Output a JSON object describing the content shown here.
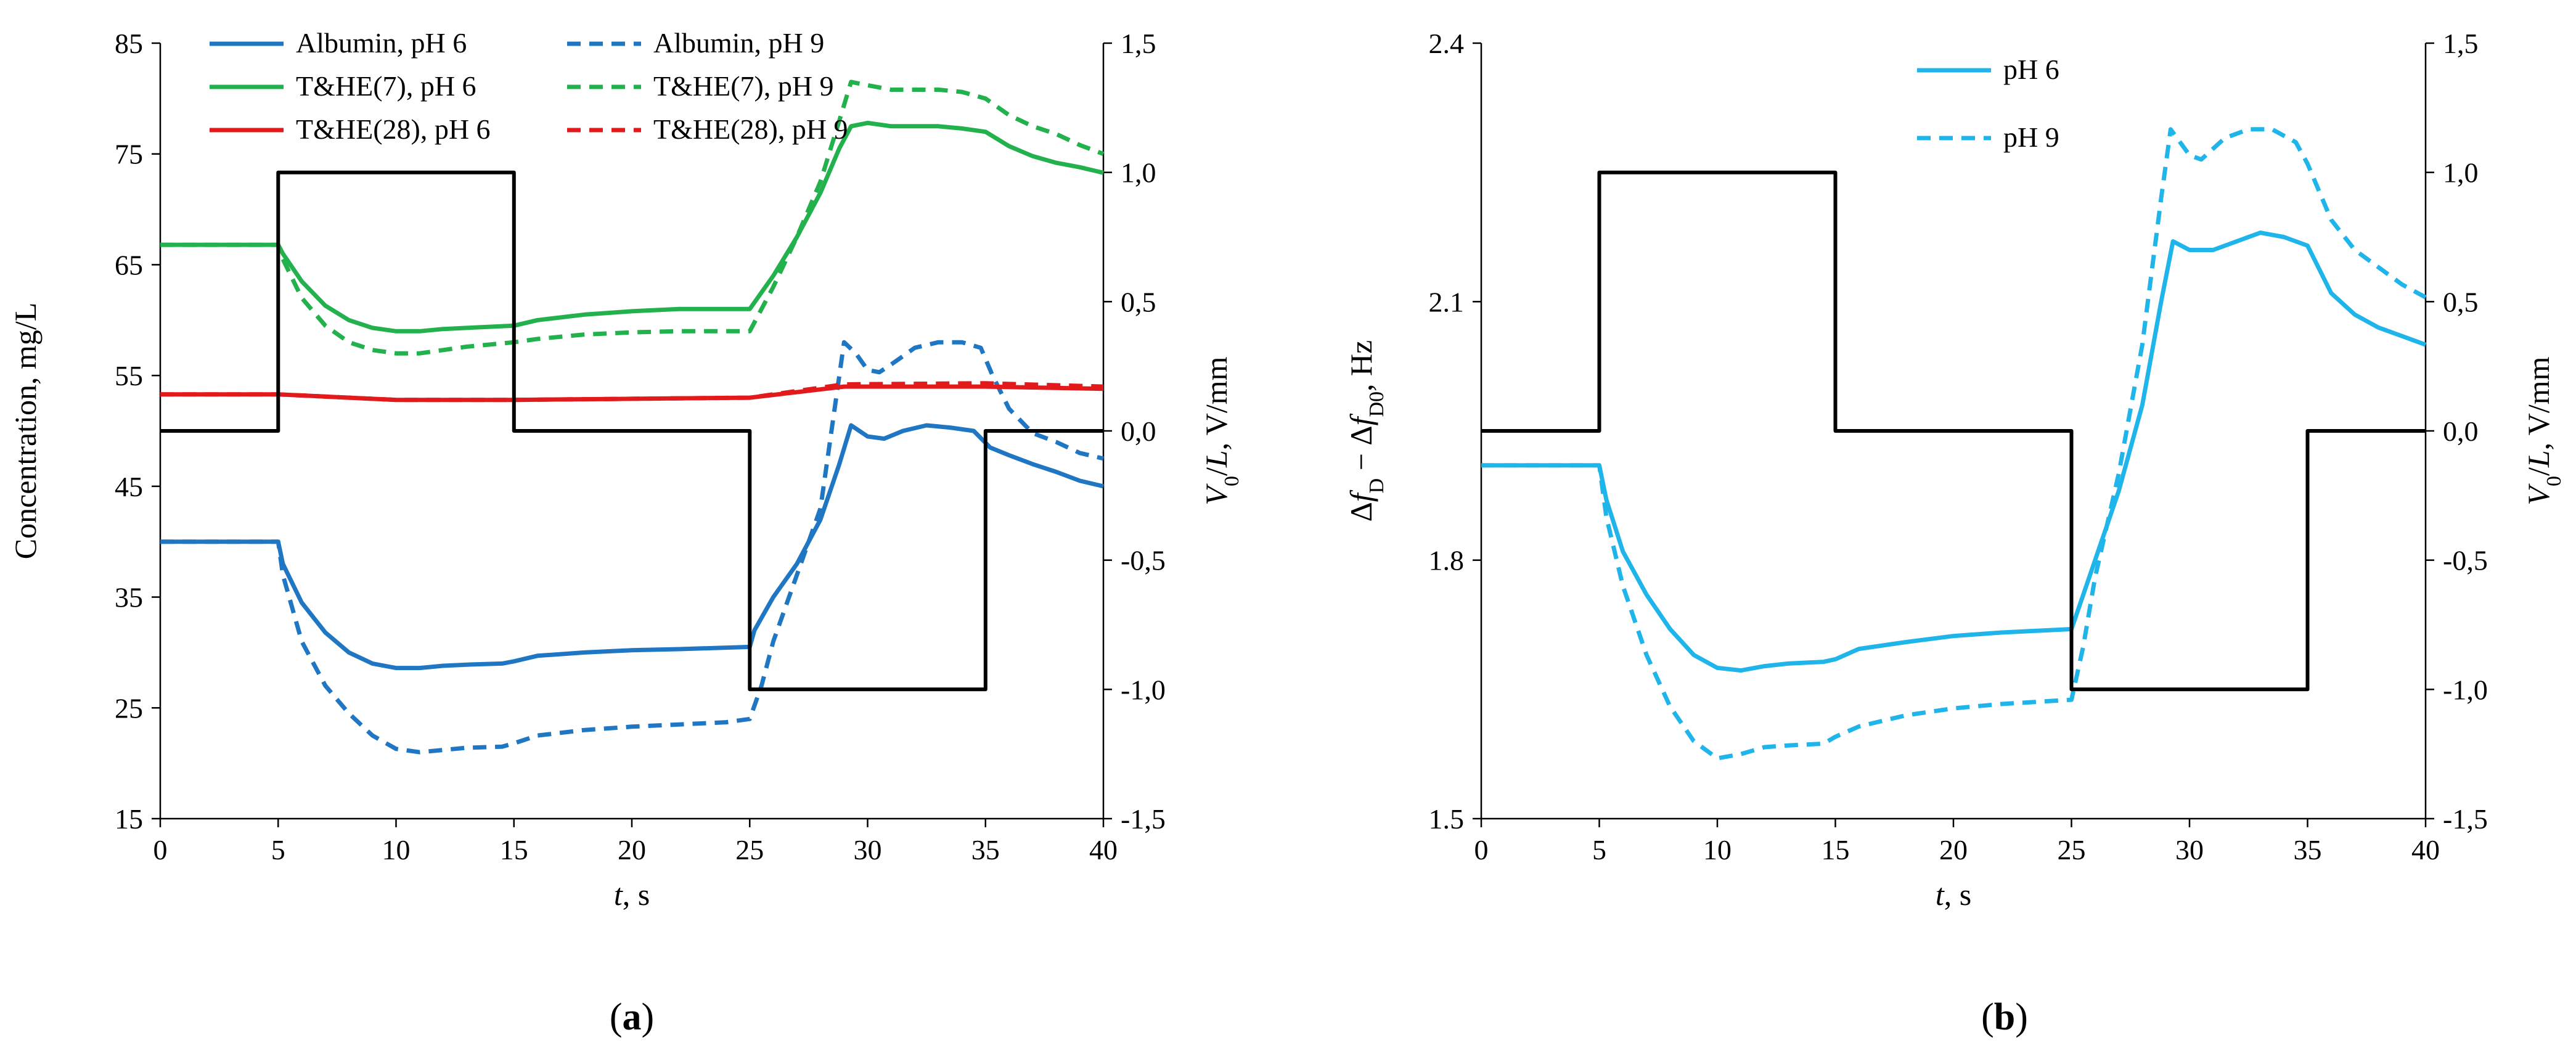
{
  "chart_data": [
    {
      "panel_label": "(a)",
      "type": "line",
      "xlabel": "t, s",
      "ylabel_left": "Concentration,  mg/L",
      "ylabel_right": "V0/L, V/mm",
      "xlim": [
        0,
        40
      ],
      "xticks": [
        0,
        5,
        10,
        15,
        20,
        25,
        30,
        35,
        40
      ],
      "ylim_left": [
        15,
        85
      ],
      "yticks_left": [
        15,
        25,
        35,
        45,
        55,
        65,
        75,
        85
      ],
      "ylim_right": [
        -1.5,
        1.5
      ],
      "yticks_right": [
        "-1,5",
        "-1,0",
        "-0,5",
        "0,0",
        "0,5",
        "1,0",
        "1,5"
      ],
      "legend_position": "top-left",
      "series": [
        {
          "name": "Albumin, pH 6",
          "axis": "left",
          "color": "#1f77c4",
          "dash": "solid",
          "points": [
            [
              0,
              40
            ],
            [
              5,
              40
            ],
            [
              5.2,
              38
            ],
            [
              6,
              34.5
            ],
            [
              7,
              31.8
            ],
            [
              8,
              30
            ],
            [
              9,
              29
            ],
            [
              10,
              28.6
            ],
            [
              11,
              28.6
            ],
            [
              12,
              28.8
            ],
            [
              13,
              28.9
            ],
            [
              14.5,
              29
            ],
            [
              15,
              29.2
            ],
            [
              16,
              29.7
            ],
            [
              18,
              30
            ],
            [
              20,
              30.2
            ],
            [
              22,
              30.3
            ],
            [
              25,
              30.5
            ],
            [
              25.2,
              32
            ],
            [
              26,
              35
            ],
            [
              27,
              38
            ],
            [
              28,
              42
            ],
            [
              28.8,
              47
            ],
            [
              29.3,
              50.5
            ],
            [
              30,
              49.5
            ],
            [
              30.7,
              49.3
            ],
            [
              31.5,
              50
            ],
            [
              32.5,
              50.5
            ],
            [
              33.5,
              50.3
            ],
            [
              34.5,
              50
            ],
            [
              35.2,
              48.5
            ],
            [
              36,
              47.8
            ],
            [
              37,
              47
            ],
            [
              38,
              46.3
            ],
            [
              39,
              45.5
            ],
            [
              40,
              45
            ]
          ]
        },
        {
          "name": "Albumin, pH 9",
          "axis": "left",
          "color": "#1f77c4",
          "dash": "dashed",
          "points": [
            [
              0,
              40
            ],
            [
              5,
              40
            ],
            [
              5.2,
              37
            ],
            [
              6,
              31
            ],
            [
              7,
              27
            ],
            [
              8,
              24.5
            ],
            [
              9,
              22.5
            ],
            [
              10,
              21.3
            ],
            [
              11,
              21
            ],
            [
              12,
              21.2
            ],
            [
              13,
              21.4
            ],
            [
              14.5,
              21.5
            ],
            [
              15,
              21.8
            ],
            [
              16,
              22.5
            ],
            [
              18,
              23
            ],
            [
              20,
              23.3
            ],
            [
              22,
              23.5
            ],
            [
              24,
              23.7
            ],
            [
              25,
              24
            ],
            [
              25.5,
              27
            ],
            [
              26,
              31
            ],
            [
              27,
              37
            ],
            [
              28,
              43
            ],
            [
              28.6,
              52
            ],
            [
              29,
              58
            ],
            [
              29.5,
              57
            ],
            [
              30,
              55.5
            ],
            [
              30.5,
              55.3
            ],
            [
              31,
              56
            ],
            [
              32,
              57.5
            ],
            [
              33,
              58
            ],
            [
              34,
              58
            ],
            [
              34.8,
              57.5
            ],
            [
              35.3,
              55
            ],
            [
              36,
              52
            ],
            [
              37,
              49.8
            ],
            [
              38,
              49
            ],
            [
              39,
              48
            ],
            [
              40,
              47.5
            ]
          ]
        },
        {
          "name": "T&HE(7), pH 6",
          "axis": "left",
          "color": "#22b14c",
          "dash": "solid",
          "points": [
            [
              0,
              66.8
            ],
            [
              5,
              66.8
            ],
            [
              5.2,
              66
            ],
            [
              6,
              63.5
            ],
            [
              7,
              61.3
            ],
            [
              8,
              60
            ],
            [
              9,
              59.3
            ],
            [
              10,
              59
            ],
            [
              11,
              59
            ],
            [
              12,
              59.2
            ],
            [
              13,
              59.3
            ],
            [
              15,
              59.5
            ],
            [
              16,
              60
            ],
            [
              18,
              60.5
            ],
            [
              20,
              60.8
            ],
            [
              22,
              61
            ],
            [
              25,
              61
            ],
            [
              26,
              64
            ],
            [
              27,
              67.5
            ],
            [
              28,
              71.5
            ],
            [
              28.8,
              75.5
            ],
            [
              29.3,
              77.5
            ],
            [
              30,
              77.8
            ],
            [
              31,
              77.5
            ],
            [
              32,
              77.5
            ],
            [
              33,
              77.5
            ],
            [
              34,
              77.3
            ],
            [
              35,
              77
            ],
            [
              36,
              75.7
            ],
            [
              37,
              74.8
            ],
            [
              38,
              74.2
            ],
            [
              39,
              73.8
            ],
            [
              40,
              73.3
            ]
          ]
        },
        {
          "name": "T&HE(7), pH 9",
          "axis": "left",
          "color": "#22b14c",
          "dash": "dashed",
          "points": [
            [
              0,
              66.8
            ],
            [
              5,
              66.8
            ],
            [
              5.2,
              65.5
            ],
            [
              6,
              62
            ],
            [
              7,
              59.5
            ],
            [
              8,
              58
            ],
            [
              9,
              57.3
            ],
            [
              10,
              57
            ],
            [
              11,
              57
            ],
            [
              12,
              57.3
            ],
            [
              13,
              57.6
            ],
            [
              15,
              58
            ],
            [
              16,
              58.3
            ],
            [
              18,
              58.7
            ],
            [
              20,
              58.9
            ],
            [
              22,
              59
            ],
            [
              25,
              59
            ],
            [
              26,
              63
            ],
            [
              27,
              67.5
            ],
            [
              28,
              72.5
            ],
            [
              28.8,
              78
            ],
            [
              29.3,
              81.5
            ],
            [
              30,
              81.2
            ],
            [
              31,
              80.8
            ],
            [
              32,
              80.8
            ],
            [
              33,
              80.8
            ],
            [
              34,
              80.6
            ],
            [
              35,
              80
            ],
            [
              36,
              78.5
            ],
            [
              37,
              77.5
            ],
            [
              38,
              76.8
            ],
            [
              39,
              75.8
            ],
            [
              40,
              75
            ]
          ]
        },
        {
          "name": "T&HE(28), pH 6",
          "axis": "left",
          "color": "#e31a1c",
          "dash": "solid",
          "points": [
            [
              0,
              53.3
            ],
            [
              5,
              53.3
            ],
            [
              8,
              53
            ],
            [
              10,
              52.8
            ],
            [
              15,
              52.8
            ],
            [
              20,
              52.9
            ],
            [
              25,
              53
            ],
            [
              27,
              53.5
            ],
            [
              29,
              54
            ],
            [
              35,
              54
            ],
            [
              40,
              53.8
            ]
          ]
        },
        {
          "name": "T&HE(28), pH 9",
          "axis": "left",
          "color": "#e31a1c",
          "dash": "dashed",
          "points": [
            [
              0,
              53.3
            ],
            [
              5,
              53.3
            ],
            [
              8,
              53
            ],
            [
              10,
              52.8
            ],
            [
              15,
              52.8
            ],
            [
              20,
              52.9
            ],
            [
              25,
              53
            ],
            [
              27,
              53.6
            ],
            [
              29,
              54.2
            ],
            [
              35,
              54.3
            ],
            [
              40,
              54
            ]
          ]
        },
        {
          "name": "",
          "axis": "right",
          "color": "#000000",
          "dash": "solid",
          "points": [
            [
              0,
              0
            ],
            [
              5,
              0
            ],
            [
              5,
              1
            ],
            [
              15,
              1
            ],
            [
              15,
              0
            ],
            [
              25,
              0
            ],
            [
              25,
              -1
            ],
            [
              35,
              -1
            ],
            [
              35,
              0
            ],
            [
              40,
              0
            ]
          ]
        }
      ]
    },
    {
      "panel_label": "(b)",
      "type": "line",
      "xlabel": "t, s",
      "ylabel_left": "Δf_D − Δf_D0, Hz",
      "ylabel_right": "V0/L, V/mm",
      "xlim": [
        0,
        40
      ],
      "xticks": [
        0,
        5,
        10,
        15,
        20,
        25,
        30,
        35,
        40
      ],
      "ylim_left": [
        1.5,
        2.4
      ],
      "yticks_left": [
        "1.5",
        "1.8",
        "2.1",
        "2.4"
      ],
      "ylim_right": [
        -1.5,
        1.5
      ],
      "yticks_right": [
        "-1,5",
        "-1,0",
        "-0,5",
        "0,0",
        "0,5",
        "1,0",
        "1,5"
      ],
      "legend_position": "top-left",
      "series": [
        {
          "name": "pH 6",
          "axis": "left",
          "color": "#1fb5ea",
          "dash": "solid",
          "points": [
            [
              0,
              1.91
            ],
            [
              5,
              1.91
            ],
            [
              5.3,
              1.87
            ],
            [
              6,
              1.81
            ],
            [
              7,
              1.76
            ],
            [
              8,
              1.72
            ],
            [
              9,
              1.69
            ],
            [
              10,
              1.675
            ],
            [
              11,
              1.672
            ],
            [
              12,
              1.677
            ],
            [
              13,
              1.68
            ],
            [
              14.5,
              1.682
            ],
            [
              15,
              1.685
            ],
            [
              16,
              1.697
            ],
            [
              18,
              1.705
            ],
            [
              20,
              1.712
            ],
            [
              22,
              1.716
            ],
            [
              25,
              1.72
            ],
            [
              25.5,
              1.76
            ],
            [
              26,
              1.8
            ],
            [
              27,
              1.88
            ],
            [
              28,
              1.98
            ],
            [
              28.8,
              2.1
            ],
            [
              29.3,
              2.17
            ],
            [
              30,
              2.16
            ],
            [
              31,
              2.16
            ],
            [
              32,
              2.17
            ],
            [
              33,
              2.18
            ],
            [
              34,
              2.175
            ],
            [
              35,
              2.165
            ],
            [
              36,
              2.11
            ],
            [
              37,
              2.085
            ],
            [
              38,
              2.07
            ],
            [
              39,
              2.06
            ],
            [
              40,
              2.05
            ]
          ]
        },
        {
          "name": "pH 9",
          "axis": "left",
          "color": "#1fb5ea",
          "dash": "dashed",
          "points": [
            [
              0,
              1.91
            ],
            [
              5,
              1.91
            ],
            [
              5.3,
              1.85
            ],
            [
              6,
              1.77
            ],
            [
              7,
              1.69
            ],
            [
              8,
              1.63
            ],
            [
              9,
              1.59
            ],
            [
              10,
              1.57
            ],
            [
              11,
              1.575
            ],
            [
              12,
              1.583
            ],
            [
              13,
              1.585
            ],
            [
              14.5,
              1.587
            ],
            [
              15,
              1.595
            ],
            [
              16,
              1.607
            ],
            [
              18,
              1.62
            ],
            [
              20,
              1.628
            ],
            [
              22,
              1.633
            ],
            [
              25,
              1.638
            ],
            [
              25.5,
              1.7
            ],
            [
              26,
              1.78
            ],
            [
              27,
              1.9
            ],
            [
              28,
              2.05
            ],
            [
              28.8,
              2.22
            ],
            [
              29.2,
              2.3
            ],
            [
              30,
              2.27
            ],
            [
              30.5,
              2.265
            ],
            [
              31.5,
              2.29
            ],
            [
              32.5,
              2.3
            ],
            [
              33.5,
              2.3
            ],
            [
              34.5,
              2.285
            ],
            [
              35,
              2.26
            ],
            [
              36,
              2.195
            ],
            [
              37,
              2.16
            ],
            [
              38,
              2.14
            ],
            [
              39,
              2.12
            ],
            [
              40,
              2.105
            ]
          ]
        },
        {
          "name": "",
          "axis": "right",
          "color": "#000000",
          "dash": "solid",
          "points": [
            [
              0,
              0
            ],
            [
              5,
              0
            ],
            [
              5,
              1
            ],
            [
              15,
              1
            ],
            [
              15,
              0
            ],
            [
              25,
              0
            ],
            [
              25,
              -1
            ],
            [
              35,
              -1
            ],
            [
              35,
              0
            ],
            [
              40,
              0
            ]
          ]
        }
      ]
    }
  ]
}
